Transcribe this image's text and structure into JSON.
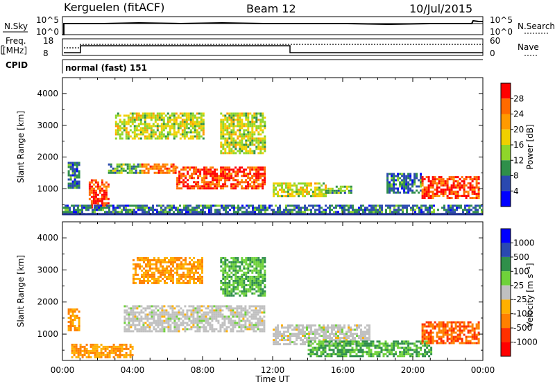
{
  "header": {
    "station": "Kerguelen (fitACF)",
    "beam": "Beam 12",
    "date": "10/Jul/2015"
  },
  "panels": {
    "nsky_label": "N.Sky",
    "nsearch_label": "N.Search",
    "freq_label_1": "Freq.",
    "freq_label_2": "[MHz]",
    "nave_label": "Nave",
    "cpid_label": "CPID",
    "cpid_value": "normal (fast) 151",
    "nsky_ticks": [
      "10^5",
      "10^0"
    ],
    "nsearch_ticks": [
      "10^5",
      "10^0"
    ],
    "freq_ticks": [
      "18",
      "8"
    ],
    "nave_ticks": [
      "60",
      "0"
    ]
  },
  "colorbars": {
    "power": {
      "label": "Power [dB]",
      "ticks": [
        "28",
        "24",
        "20",
        "16",
        "12",
        "8",
        "4"
      ],
      "colors": [
        "#0000ff",
        "#2a49b0",
        "#2f8f4a",
        "#8fd62a",
        "#f0d000",
        "#ff9a00",
        "#ff6a00",
        "#ff0000"
      ]
    },
    "velocity": {
      "label": "Velocity [m s⁻¹]",
      "ticks": [
        "1000",
        "500",
        "100",
        "25",
        "-25",
        "-100",
        "-500",
        "-1000"
      ],
      "colors": [
        "#0000ff",
        "#2a49b0",
        "#2f8f4a",
        "#6fd23a",
        "#c0c0c0",
        "#ffb000",
        "#ff8000",
        "#ff3000",
        "#ff0000"
      ]
    }
  },
  "chart_data": [
    {
      "type": "heatmap",
      "name": "Power",
      "ylabel": "Slant Range [km]",
      "xlim": [
        "00:00",
        "24:00"
      ],
      "ylim": [
        180,
        4500
      ],
      "yticks": [
        1000,
        2000,
        3000,
        4000
      ],
      "patches": [
        {
          "t": [
            0.3,
            0.9
          ],
          "r": [
            1000,
            1850
          ],
          "level": 8
        },
        {
          "t": [
            1.5,
            2.6
          ],
          "r": [
            400,
            1300
          ],
          "level": 28
        },
        {
          "t": [
            2.6,
            4.5
          ],
          "r": [
            1500,
            1800
          ],
          "level": 12
        },
        {
          "t": [
            4.5,
            6.5
          ],
          "r": [
            1500,
            1800
          ],
          "level": 24
        },
        {
          "t": [
            6.5,
            11.5
          ],
          "r": [
            1000,
            1700
          ],
          "level": 28
        },
        {
          "t": [
            3.0,
            8.0
          ],
          "r": [
            2600,
            3400
          ],
          "level": 16
        },
        {
          "t": [
            9.0,
            11.5
          ],
          "r": [
            2100,
            3400
          ],
          "level": 16
        },
        {
          "t": [
            12.0,
            15.0
          ],
          "r": [
            800,
            1200
          ],
          "level": 16
        },
        {
          "t": [
            15.0,
            16.5
          ],
          "r": [
            850,
            1100
          ],
          "level": 12
        },
        {
          "t": [
            18.5,
            20.5
          ],
          "r": [
            900,
            1500
          ],
          "level": 8
        },
        {
          "t": [
            20.5,
            23.8
          ],
          "r": [
            700,
            1400
          ],
          "level": 28
        },
        {
          "t": [
            0.0,
            24.0
          ],
          "r": [
            200,
            500
          ],
          "level": 8
        }
      ]
    },
    {
      "type": "heatmap",
      "name": "Velocity",
      "xlabel": "Time UT",
      "ylabel": "Slant Range [km]",
      "xlim": [
        "00:00",
        "24:00"
      ],
      "ylim": [
        180,
        4500
      ],
      "xticks": [
        "00:00",
        "04:00",
        "08:00",
        "12:00",
        "16:00",
        "20:00",
        "00:00"
      ],
      "yticks": [
        1000,
        2000,
        3000,
        4000
      ],
      "patches": [
        {
          "t": [
            0.3,
            1.0
          ],
          "r": [
            1100,
            1800
          ],
          "level": -100
        },
        {
          "t": [
            0.5,
            4.0
          ],
          "r": [
            300,
            700
          ],
          "level": -100
        },
        {
          "t": [
            3.5,
            11.5
          ],
          "r": [
            1100,
            1900
          ],
          "level": 0
        },
        {
          "t": [
            4.0,
            8.0
          ],
          "r": [
            2600,
            3400
          ],
          "level": -100
        },
        {
          "t": [
            9.0,
            11.5
          ],
          "r": [
            2200,
            3400
          ],
          "level": 100
        },
        {
          "t": [
            12.0,
            17.5
          ],
          "r": [
            700,
            1300
          ],
          "level": 0
        },
        {
          "t": [
            14.0,
            18.5
          ],
          "r": [
            300,
            800
          ],
          "level": 100
        },
        {
          "t": [
            18.5,
            21.0
          ],
          "r": [
            300,
            800
          ],
          "level": 100
        },
        {
          "t": [
            20.5,
            23.8
          ],
          "r": [
            700,
            1400
          ],
          "level": -500
        }
      ]
    }
  ]
}
